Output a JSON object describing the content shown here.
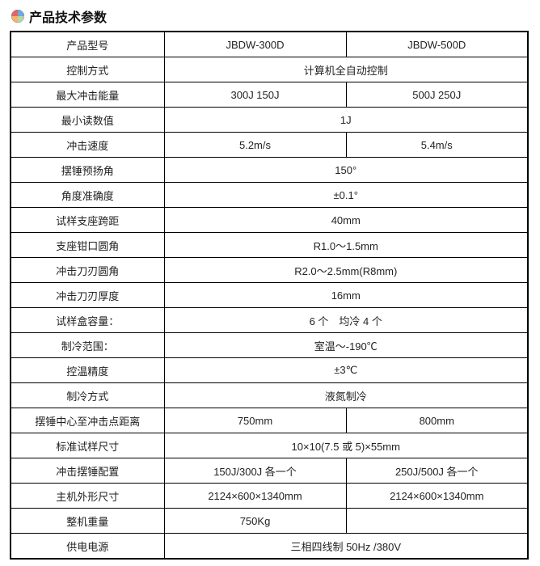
{
  "title": "产品技术参数",
  "icon_name": "pie-icon",
  "icon_colors": [
    "#6fa8dc",
    "#b6d7a8",
    "#f6b26b",
    "#e06666"
  ],
  "table": {
    "cols": 3,
    "rows": [
      {
        "c1": "产品型号",
        "c2": "JBDW-300D",
        "c3": "JBDW-500D"
      },
      {
        "c1": "控制方式",
        "merged": "计算机全自动控制"
      },
      {
        "c1": "最大冲击能量",
        "c2": "300J 150J",
        "c3": "500J 250J"
      },
      {
        "c1": "最小读数值",
        "merged": "1J"
      },
      {
        "c1": "冲击速度",
        "c2": "5.2m/s",
        "c3": "5.4m/s"
      },
      {
        "c1": "摆锤预扬角",
        "merged": "150°"
      },
      {
        "c1": "角度准确度",
        "merged": "±0.1°"
      },
      {
        "c1": "试样支座跨距",
        "merged": "40mm"
      },
      {
        "c1": "支座钳口圆角",
        "merged": "R1.0～1.5mm"
      },
      {
        "c1": "冲击刀刃圆角",
        "merged": "R2.0～2.5mm(R8mm)"
      },
      {
        "c1": "冲击刀刃厚度",
        "merged": "16mm"
      },
      {
        "c1": "试样盒容量：",
        "merged": "6 个　均冷 4 个"
      },
      {
        "c1": "制冷范围：",
        "merged": "室温～-190℃"
      },
      {
        "c1": "控温精度",
        "merged": "±3℃"
      },
      {
        "c1": "制冷方式",
        "merged": "液氮制冷"
      },
      {
        "c1": "摆锤中心至冲击点距离",
        "c2": "750mm",
        "c3": "800mm"
      },
      {
        "c1": "标准试样尺寸",
        "merged": "10×10(7.5 或 5)×55mm"
      },
      {
        "c1": "冲击摆锤配置",
        "c2": "150J/300J 各一个",
        "c3": "250J/500J 各一个"
      },
      {
        "c1": "主机外形尺寸",
        "c2": "2124×600×1340mm",
        "c3": "2124×600×1340mm"
      },
      {
        "c1": "整机重量",
        "c2": "750Kg",
        "c3": ""
      },
      {
        "c1": "供电电源",
        "merged": "三相四线制 50Hz /380V"
      }
    ]
  }
}
